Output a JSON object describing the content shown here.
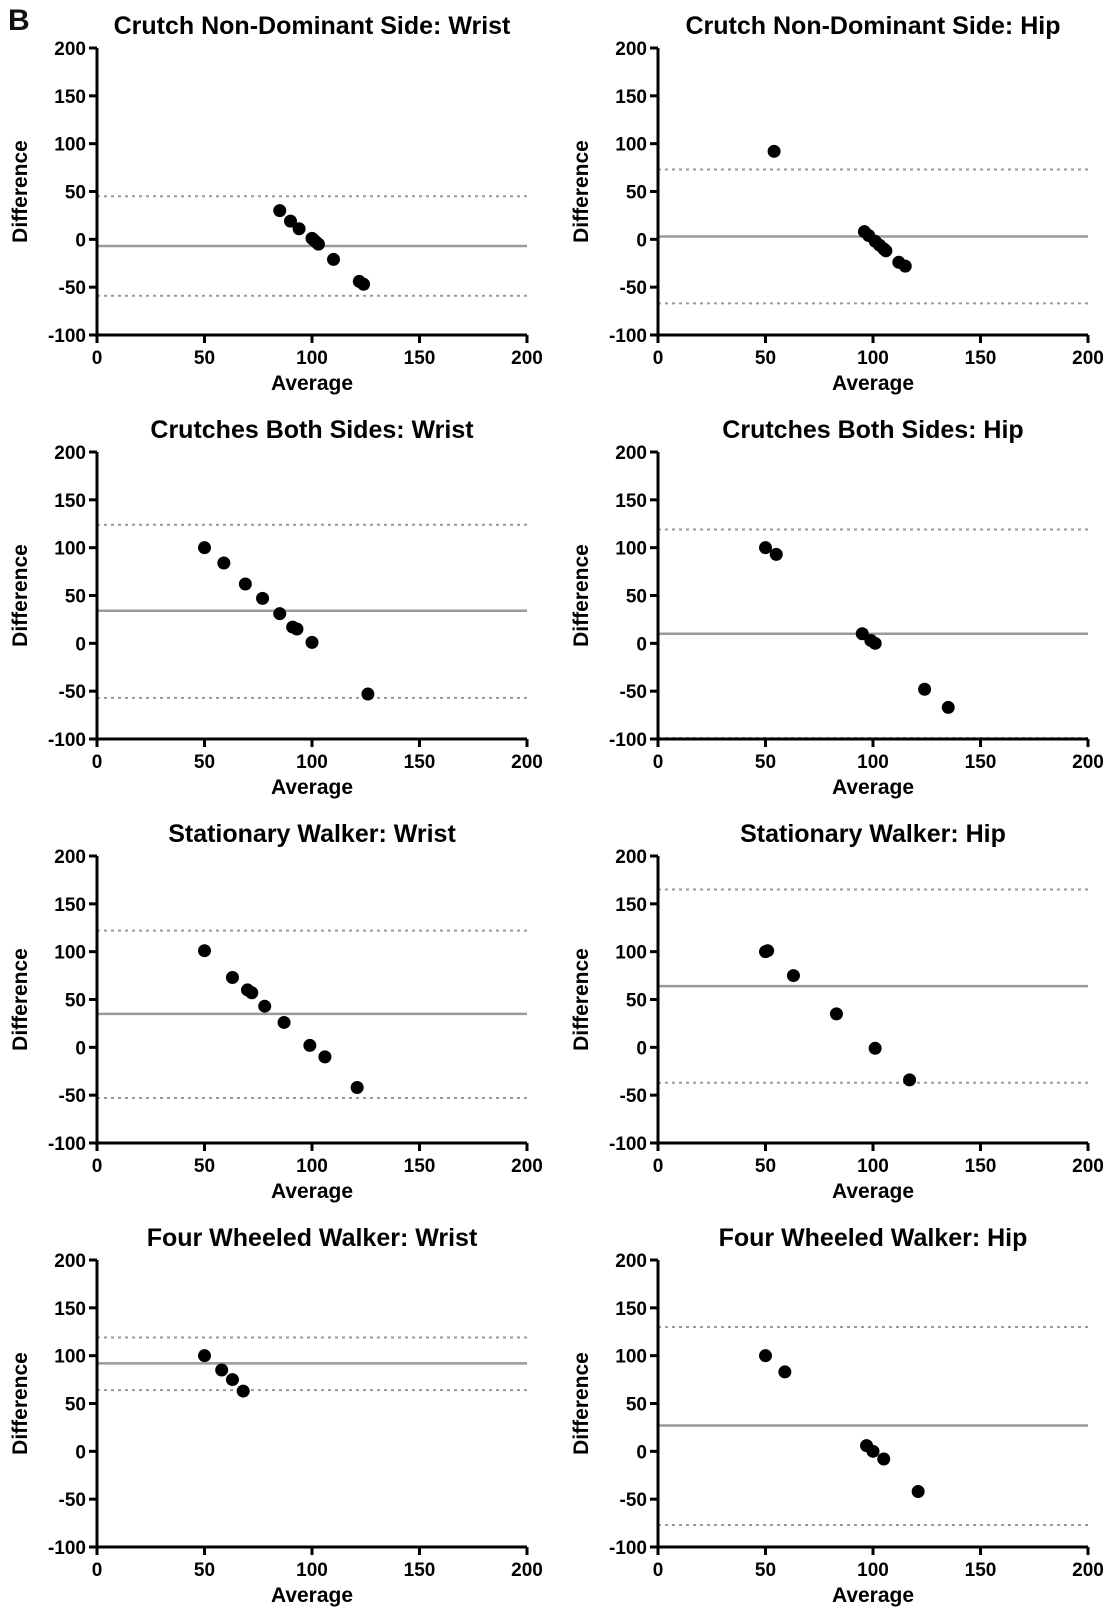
{
  "figure": {
    "panel_label": "B"
  },
  "chart_data": [
    {
      "type": "scatter",
      "title": "Crutch Non-Dominant Side: Wrist",
      "xlabel": "Average",
      "ylabel": "Difference",
      "xlim": [
        0,
        200
      ],
      "ylim": [
        -100,
        200
      ],
      "xticks": [
        0,
        50,
        100,
        150,
        200
      ],
      "yticks": [
        -100,
        -50,
        0,
        50,
        100,
        150,
        200
      ],
      "points": [
        [
          85,
          30
        ],
        [
          90,
          19
        ],
        [
          94,
          11
        ],
        [
          100,
          1
        ],
        [
          101,
          -1
        ],
        [
          102,
          -3
        ],
        [
          103,
          -5
        ],
        [
          110,
          -21
        ],
        [
          122,
          -44
        ],
        [
          124,
          -47
        ]
      ],
      "mean_line": -7,
      "limits": [
        45,
        -59
      ],
      "grid": false
    },
    {
      "type": "scatter",
      "title": "Crutch Non-Dominant Side: Hip",
      "xlabel": "Average",
      "ylabel": "Difference",
      "xlim": [
        0,
        200
      ],
      "ylim": [
        -100,
        200
      ],
      "xticks": [
        0,
        50,
        100,
        150,
        200
      ],
      "yticks": [
        -100,
        -50,
        0,
        50,
        100,
        150,
        200
      ],
      "points": [
        [
          54,
          92
        ],
        [
          96,
          8
        ],
        [
          98,
          4
        ],
        [
          101,
          -2
        ],
        [
          103,
          -6
        ],
        [
          105,
          -10
        ],
        [
          106,
          -12
        ],
        [
          112,
          -24
        ],
        [
          115,
          -28
        ]
      ],
      "mean_line": 3,
      "limits": [
        73,
        -67
      ],
      "grid": false
    },
    {
      "type": "scatter",
      "title": "Crutches Both Sides: Wrist",
      "xlabel": "Average",
      "ylabel": "Difference",
      "xlim": [
        0,
        200
      ],
      "ylim": [
        -100,
        200
      ],
      "xticks": [
        0,
        50,
        100,
        150,
        200
      ],
      "yticks": [
        -100,
        -50,
        0,
        50,
        100,
        150,
        200
      ],
      "points": [
        [
          50,
          100
        ],
        [
          59,
          84
        ],
        [
          69,
          62
        ],
        [
          77,
          47
        ],
        [
          85,
          31
        ],
        [
          91,
          17
        ],
        [
          93,
          15
        ],
        [
          100,
          1
        ],
        [
          126,
          -53
        ]
      ],
      "mean_line": 34,
      "limits": [
        124,
        -57
      ],
      "grid": false
    },
    {
      "type": "scatter",
      "title": "Crutches Both Sides: Hip",
      "xlabel": "Average",
      "ylabel": "Difference",
      "xlim": [
        0,
        200
      ],
      "ylim": [
        -100,
        200
      ],
      "xticks": [
        0,
        50,
        100,
        150,
        200
      ],
      "yticks": [
        -100,
        -50,
        0,
        50,
        100,
        150,
        200
      ],
      "points": [
        [
          50,
          100
        ],
        [
          55,
          93
        ],
        [
          95,
          10
        ],
        [
          99,
          3
        ],
        [
          101,
          0
        ],
        [
          124,
          -48
        ],
        [
          135,
          -67
        ]
      ],
      "mean_line": 10,
      "limits": [
        119,
        -99
      ],
      "grid": false
    },
    {
      "type": "scatter",
      "title": "Stationary Walker: Wrist",
      "xlabel": "Average",
      "ylabel": "Difference",
      "xlim": [
        0,
        200
      ],
      "ylim": [
        -100,
        200
      ],
      "xticks": [
        0,
        50,
        100,
        150,
        200
      ],
      "yticks": [
        -100,
        -50,
        0,
        50,
        100,
        150,
        200
      ],
      "points": [
        [
          50,
          101
        ],
        [
          63,
          73
        ],
        [
          70,
          60
        ],
        [
          72,
          57
        ],
        [
          78,
          43
        ],
        [
          87,
          26
        ],
        [
          99,
          2
        ],
        [
          106,
          -10
        ],
        [
          121,
          -42
        ]
      ],
      "mean_line": 35,
      "limits": [
        122,
        -53
      ],
      "grid": false
    },
    {
      "type": "scatter",
      "title": "Stationary Walker: Hip",
      "xlabel": "Average",
      "ylabel": "Difference",
      "xlim": [
        0,
        200
      ],
      "ylim": [
        -100,
        200
      ],
      "xticks": [
        0,
        50,
        100,
        150,
        200
      ],
      "yticks": [
        -100,
        -50,
        0,
        50,
        100,
        150,
        200
      ],
      "points": [
        [
          50,
          100
        ],
        [
          51,
          101
        ],
        [
          63,
          75
        ],
        [
          83,
          35
        ],
        [
          101,
          -1
        ],
        [
          117,
          -34
        ]
      ],
      "mean_line": 64,
      "limits": [
        165,
        -37
      ],
      "grid": false
    },
    {
      "type": "scatter",
      "title": "Four Wheeled Walker: Wrist",
      "xlabel": "Average",
      "ylabel": "Difference",
      "xlim": [
        0,
        200
      ],
      "ylim": [
        -100,
        200
      ],
      "xticks": [
        0,
        50,
        100,
        150,
        200
      ],
      "yticks": [
        -100,
        -50,
        0,
        50,
        100,
        150,
        200
      ],
      "points": [
        [
          50,
          100
        ],
        [
          58,
          85
        ],
        [
          63,
          75
        ],
        [
          68,
          63
        ]
      ],
      "mean_line": 92,
      "limits": [
        119,
        64
      ],
      "grid": false
    },
    {
      "type": "scatter",
      "title": "Four Wheeled Walker: Hip",
      "xlabel": "Average",
      "ylabel": "Difference",
      "xlim": [
        0,
        200
      ],
      "ylim": [
        -100,
        200
      ],
      "xticks": [
        0,
        50,
        100,
        150,
        200
      ],
      "yticks": [
        -100,
        -50,
        0,
        50,
        100,
        150,
        200
      ],
      "points": [
        [
          50,
          100
        ],
        [
          59,
          83
        ],
        [
          97,
          6
        ],
        [
          100,
          0
        ],
        [
          105,
          -8
        ],
        [
          121,
          -42
        ]
      ],
      "mean_line": 27,
      "limits": [
        130,
        -77
      ],
      "grid": false
    }
  ]
}
